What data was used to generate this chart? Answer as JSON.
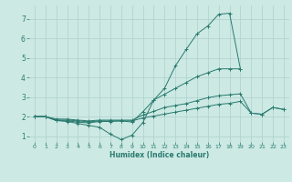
{
  "title": "",
  "xlabel": "Humidex (Indice chaleur)",
  "xlim": [
    -0.5,
    23.5
  ],
  "ylim": [
    0.7,
    7.7
  ],
  "xticks": [
    0,
    1,
    2,
    3,
    4,
    5,
    6,
    7,
    8,
    9,
    10,
    11,
    12,
    13,
    14,
    15,
    16,
    17,
    18,
    19,
    20,
    21,
    22,
    23
  ],
  "yticks": [
    1,
    2,
    3,
    4,
    5,
    6,
    7
  ],
  "bg_color": "#cce9e4",
  "grid_color": "#aed0cc",
  "line_color": "#2a7a6e",
  "series": [
    [
      2.0,
      2.0,
      1.8,
      1.75,
      1.65,
      1.55,
      1.45,
      1.1,
      0.82,
      1.05,
      1.7,
      2.85,
      3.45,
      4.6,
      5.45,
      6.25,
      6.65,
      7.25,
      7.3,
      4.45,
      null,
      null,
      null,
      null
    ],
    [
      2.0,
      2.0,
      1.8,
      1.78,
      1.72,
      1.68,
      1.75,
      1.75,
      1.78,
      1.72,
      2.25,
      2.85,
      3.15,
      3.45,
      3.75,
      4.05,
      4.25,
      4.45,
      4.45,
      4.45,
      null,
      null,
      null,
      null
    ],
    [
      2.0,
      2.0,
      1.88,
      1.87,
      1.82,
      1.78,
      1.82,
      1.82,
      1.82,
      1.82,
      2.08,
      2.27,
      2.47,
      2.57,
      2.67,
      2.82,
      2.97,
      3.07,
      3.12,
      3.17,
      2.18,
      2.12,
      2.47,
      2.37
    ],
    [
      2.0,
      2.0,
      1.83,
      1.82,
      1.78,
      1.73,
      1.78,
      1.78,
      1.78,
      1.78,
      1.93,
      2.03,
      2.13,
      2.23,
      2.33,
      2.43,
      2.53,
      2.63,
      2.68,
      2.78,
      2.18,
      2.12,
      2.47,
      2.37
    ]
  ]
}
